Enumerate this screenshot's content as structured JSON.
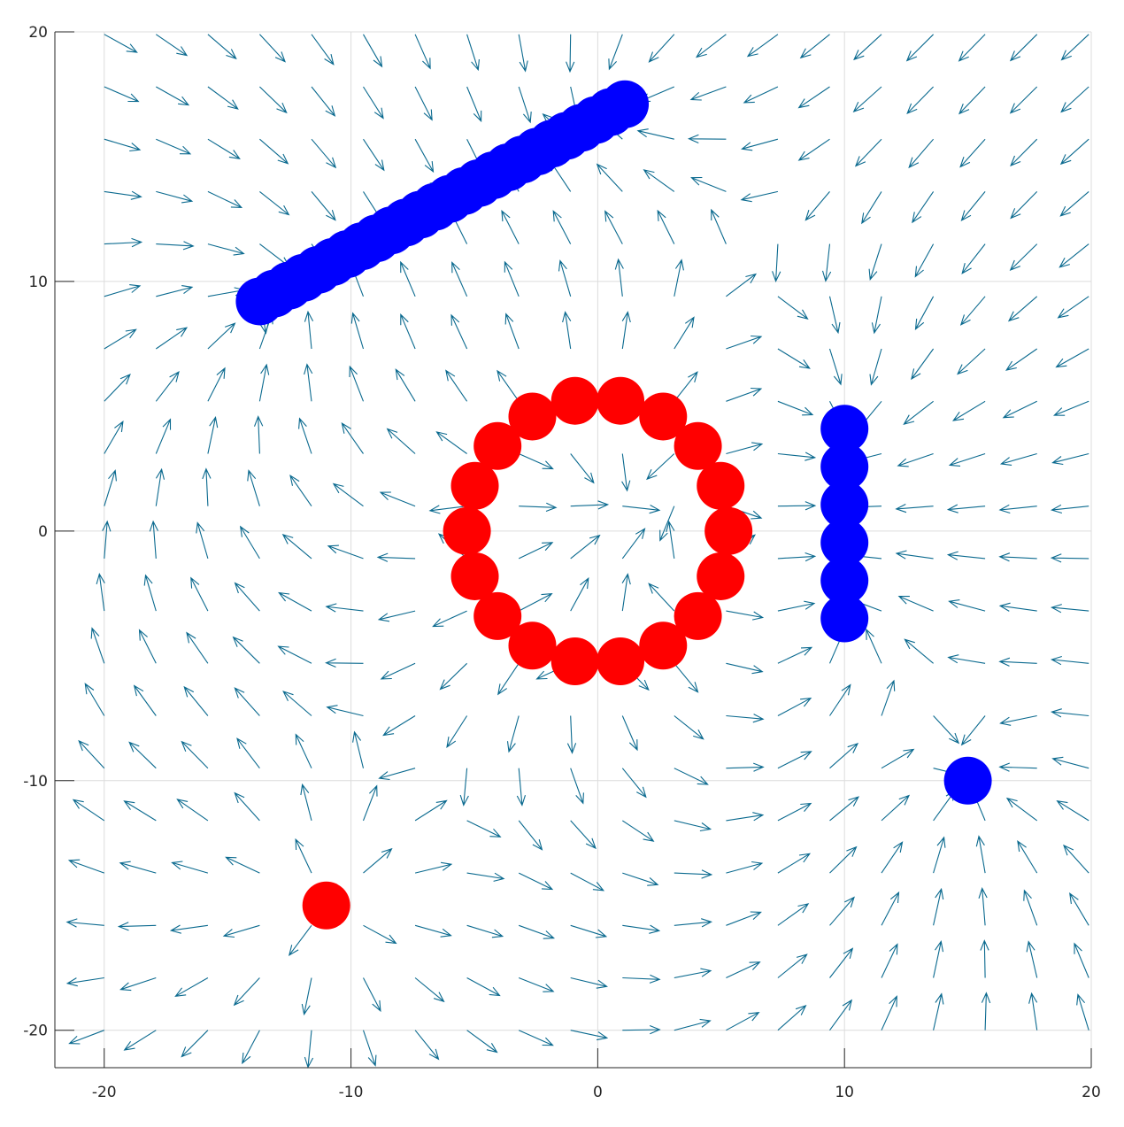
{
  "chart_data": {
    "type": "scatter",
    "subtype": "vector-field-quiver",
    "title": "",
    "xlabel": "",
    "ylabel": "",
    "xlim": [
      -22,
      20
    ],
    "ylim": [
      -21.5,
      20
    ],
    "grid": true,
    "xticks": [
      -20,
      -10,
      0,
      10,
      20
    ],
    "yticks": [
      -20,
      -10,
      0,
      10,
      20
    ],
    "xtick_labels": [
      "-20",
      "-10",
      "0",
      "10",
      "20"
    ],
    "ytick_labels": [
      "-20",
      "-10",
      "0",
      "10",
      "20"
    ],
    "colors": {
      "positive_charge": "#ff0000",
      "negative_charge": "#0000ff",
      "arrow": "#0b6a8f",
      "grid": "#dcdcdc",
      "axis": "#262626"
    },
    "quiver_grid": {
      "x_start": -20,
      "x_end": 20,
      "x_step": 2.1,
      "y_start": -20,
      "y_end": 20,
      "y_step": 2.1
    },
    "charges": [
      {
        "kind": "positive",
        "shape": "ring",
        "center": [
          0,
          0
        ],
        "radius": 5.3,
        "count": 18,
        "q": 1
      },
      {
        "kind": "positive",
        "shape": "point",
        "x": -11,
        "y": -15,
        "q": 1
      },
      {
        "kind": "negative",
        "shape": "line",
        "from": [
          -13.7,
          9.2
        ],
        "to": [
          1.1,
          17.1
        ],
        "count": 26,
        "q": -1
      },
      {
        "kind": "negative",
        "shape": "line",
        "from": [
          10,
          4.1
        ],
        "to": [
          10,
          -3.5
        ],
        "count": 6,
        "q": -1
      },
      {
        "kind": "negative",
        "shape": "point",
        "x": 15,
        "y": -10,
        "q": -1
      }
    ]
  }
}
